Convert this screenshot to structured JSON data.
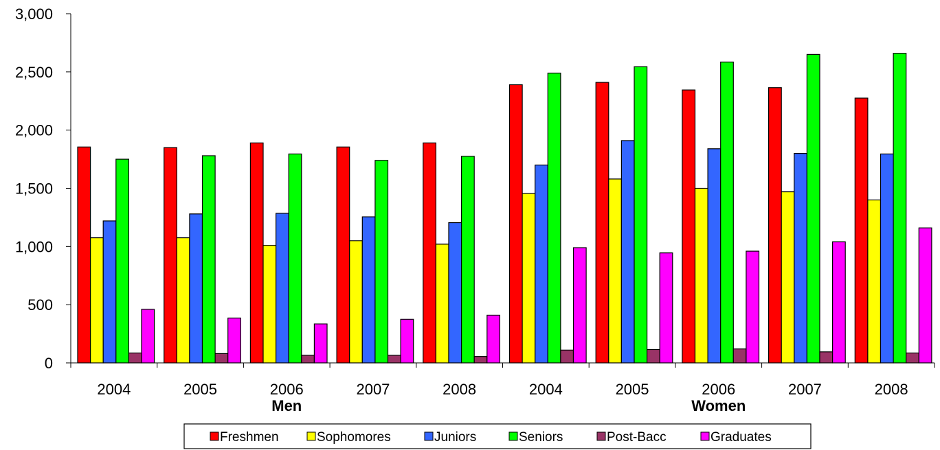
{
  "chart_data": {
    "type": "bar",
    "title": "",
    "xlabel": "",
    "ylabel": "",
    "ylim": [
      0,
      3000
    ],
    "yticks": [
      0,
      500,
      1000,
      1500,
      2000,
      2500,
      3000
    ],
    "ytick_labels": [
      "0",
      "500",
      "1,000",
      "1,500",
      "2,000",
      "2,500",
      "3,000"
    ],
    "categories": [
      "2004",
      "2005",
      "2006",
      "2007",
      "2008",
      "2004",
      "2005",
      "2006",
      "2007",
      "2008"
    ],
    "groups": [
      {
        "label": "Men",
        "span": [
          0,
          4
        ]
      },
      {
        "label": "Women",
        "span": [
          5,
          9
        ]
      }
    ],
    "grid": false,
    "legend_position": "bottom",
    "series": [
      {
        "name": "Freshmen",
        "color": "#ff0000",
        "values": [
          1855,
          1850,
          1890,
          1855,
          1890,
          2390,
          2410,
          2345,
          2365,
          2275
        ]
      },
      {
        "name": "Sophomores",
        "color": "#ffff00",
        "values": [
          1075,
          1075,
          1010,
          1050,
          1020,
          1455,
          1580,
          1500,
          1470,
          1400
        ]
      },
      {
        "name": "Juniors",
        "color": "#3366ff",
        "values": [
          1220,
          1280,
          1285,
          1255,
          1205,
          1700,
          1910,
          1840,
          1800,
          1795
        ]
      },
      {
        "name": "Seniors",
        "color": "#00ff00",
        "values": [
          1750,
          1780,
          1795,
          1740,
          1775,
          2490,
          2545,
          2585,
          2650,
          2660
        ]
      },
      {
        "name": "Post-Bacc",
        "color": "#993366",
        "values": [
          85,
          80,
          65,
          65,
          55,
          110,
          115,
          120,
          95,
          85
        ]
      },
      {
        "name": "Graduates",
        "color": "#ff00ff",
        "values": [
          460,
          385,
          335,
          375,
          410,
          990,
          945,
          960,
          1040,
          1160
        ]
      }
    ]
  }
}
